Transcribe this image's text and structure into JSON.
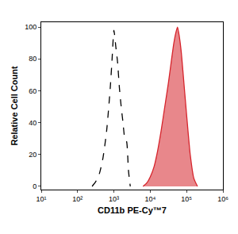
{
  "chart_data": {
    "type": "line",
    "x_label": "CD11b PE-Cy™7",
    "y_label": "Relative Cell Count",
    "log": "x",
    "grid": false,
    "xlim": [
      10,
      1000000
    ],
    "xticks": [
      {
        "value": 10,
        "label": "10¹"
      },
      {
        "value": 100,
        "label": "10²"
      },
      {
        "value": 1000,
        "label": "10³"
      },
      {
        "value": 10000,
        "label": "10⁴"
      },
      {
        "value": 100000,
        "label": "10⁵"
      },
      {
        "value": 1000000,
        "label": "10⁶"
      }
    ],
    "ylim": [
      -2,
      103
    ],
    "yticks": [
      0,
      20,
      40,
      60,
      80,
      100
    ],
    "series": [
      {
        "type": "line",
        "line_style": "dashed",
        "color": "#000000",
        "x": [
          251,
          316,
          398,
          501,
          631,
          794,
          891,
          1000,
          1122,
          1259,
          1413,
          1585,
          1778,
          1995,
          2239,
          2512,
          2818
        ],
        "values": [
          0,
          3,
          8,
          18,
          35,
          62,
          80,
          98,
          88,
          78,
          62,
          50,
          40,
          30,
          28,
          10,
          0
        ]
      },
      {
        "type": "area",
        "line_style": "solid",
        "color": "#d6242c",
        "x": [
          6310,
          7943,
          10000,
          12589,
          15849,
          19953,
          25119,
          31623,
          39811,
          44668,
          50119,
          56234,
          63096,
          70795,
          79433,
          100000,
          125893,
          158489,
          199526
        ],
        "values": [
          0,
          2,
          6,
          12,
          22,
          35,
          50,
          65,
          82,
          90,
          96,
          100,
          94,
          85,
          72,
          45,
          20,
          5,
          0
        ]
      }
    ]
  }
}
